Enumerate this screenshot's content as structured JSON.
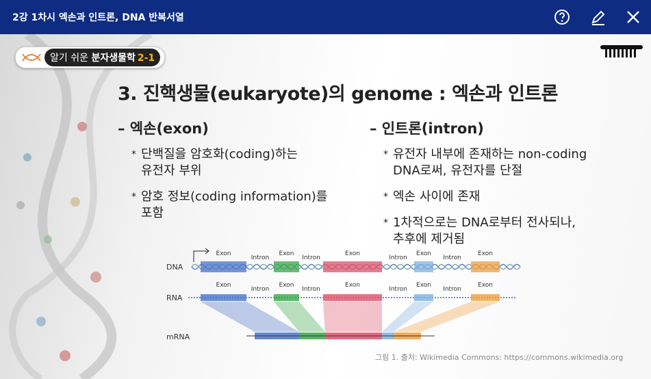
{
  "header": {
    "title": "2강 1차시 엑손과 인트론, DNA 반복서열"
  },
  "slide": {
    "badge": {
      "prefix": "알기 쉬운",
      "name": "분자생물학",
      "number": "2-1"
    },
    "title": "3. 진핵생물(eukaryote)의 genome : 엑손과 인트론",
    "bullet_marker": "*",
    "columns": [
      {
        "heading": "– 엑손(exon)",
        "bullets": [
          [
            "단백질을 암호화(coding)하는",
            "유전자 부위"
          ],
          [
            "암호 정보(coding information)를",
            "포함"
          ]
        ]
      },
      {
        "heading": "– 인트론(intron)",
        "bullets": [
          [
            "유전자 내부에 존재하는 non-coding",
            "DNA로써, 유전자를 단절"
          ],
          [
            "엑손 사이에 존재"
          ],
          [
            "1차적으로는 DNA로부터 전사되나,",
            "추후에 제거됨"
          ]
        ]
      }
    ],
    "figure": {
      "row_labels": [
        "DNA",
        "RNA",
        "mRNA"
      ],
      "segments": [
        "Exon",
        "Intron",
        "Exon",
        "Intron",
        "Exon",
        "Intron",
        "Exon",
        "Intron",
        "Exon"
      ],
      "caption": "그림 1. 출처: Wikimedia Commons: https://commons.wikimedia.org"
    }
  }
}
